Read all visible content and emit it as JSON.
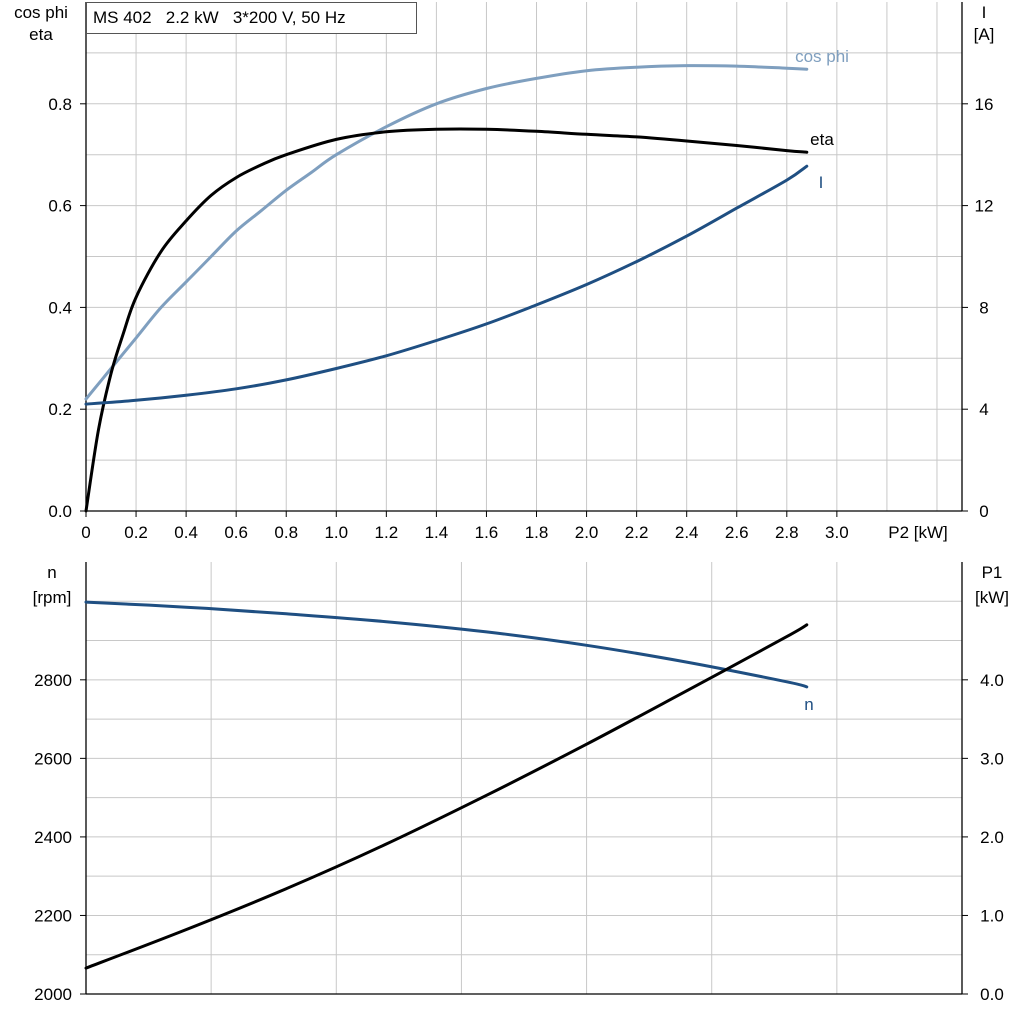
{
  "chart_data": [
    {
      "type": "line",
      "title": "MS 402   2.2 kW   3*200 V, 50 Hz",
      "xlabel": "P2 [kW]",
      "xlim": [
        0,
        3.5
      ],
      "xticks": [
        "0",
        "0.2",
        "0.4",
        "0.6",
        "0.8",
        "1.0",
        "1.2",
        "1.4",
        "1.6",
        "1.8",
        "2.0",
        "2.2",
        "2.4",
        "2.6",
        "2.8",
        "3.0"
      ],
      "ylabel_left": [
        "cos phi",
        "eta"
      ],
      "ylim_left": [
        0,
        1.0
      ],
      "yticks_left": [
        "0.0",
        "0.2",
        "0.4",
        "0.6",
        "0.8"
      ],
      "ylabel_right": [
        "I",
        "[A]"
      ],
      "ylim_right": [
        0,
        20
      ],
      "yticks_right": [
        "0",
        "4",
        "8",
        "12",
        "16"
      ],
      "grid": true,
      "series": [
        {
          "name": "cos phi",
          "axis": "left",
          "color": "#7f9fbf",
          "x": [
            0,
            0.1,
            0.2,
            0.3,
            0.4,
            0.5,
            0.6,
            0.7,
            0.8,
            0.9,
            1.0,
            1.2,
            1.4,
            1.6,
            1.8,
            2.0,
            2.2,
            2.4,
            2.6,
            2.8,
            2.88
          ],
          "y": [
            0.22,
            0.28,
            0.34,
            0.4,
            0.45,
            0.5,
            0.55,
            0.59,
            0.63,
            0.665,
            0.7,
            0.755,
            0.8,
            0.83,
            0.85,
            0.865,
            0.872,
            0.875,
            0.874,
            0.87,
            0.868
          ]
        },
        {
          "name": "eta",
          "axis": "left",
          "color": "#000000",
          "x": [
            0,
            0.05,
            0.1,
            0.15,
            0.2,
            0.3,
            0.4,
            0.5,
            0.6,
            0.7,
            0.8,
            1.0,
            1.2,
            1.4,
            1.6,
            1.8,
            2.0,
            2.2,
            2.4,
            2.6,
            2.8,
            2.88
          ],
          "y": [
            0.0,
            0.16,
            0.27,
            0.35,
            0.42,
            0.51,
            0.57,
            0.62,
            0.655,
            0.68,
            0.7,
            0.73,
            0.745,
            0.75,
            0.75,
            0.746,
            0.74,
            0.735,
            0.727,
            0.718,
            0.708,
            0.705
          ]
        },
        {
          "name": "I",
          "axis": "right",
          "color": "#1f4f82",
          "x": [
            0,
            0.2,
            0.4,
            0.6,
            0.8,
            1.0,
            1.2,
            1.4,
            1.6,
            1.8,
            2.0,
            2.2,
            2.4,
            2.6,
            2.8,
            2.88
          ],
          "y": [
            4.2,
            4.35,
            4.55,
            4.8,
            5.15,
            5.6,
            6.1,
            6.7,
            7.35,
            8.1,
            8.9,
            9.8,
            10.8,
            11.9,
            13.0,
            13.55
          ]
        }
      ]
    },
    {
      "type": "line",
      "xlim": [
        0,
        3.5
      ],
      "ylabel_left": [
        "n",
        "[rpm]"
      ],
      "ylim_left": [
        2000,
        3100
      ],
      "yticks_left": [
        "2000",
        "2200",
        "2400",
        "2600",
        "2800"
      ],
      "ylabel_right": [
        "P1",
        "[kW]"
      ],
      "ylim_right": [
        0,
        5.5
      ],
      "yticks_right": [
        "0.0",
        "1.0",
        "2.0",
        "3.0",
        "4.0"
      ],
      "grid": true,
      "series": [
        {
          "name": "n",
          "axis": "left",
          "color": "#1f4f82",
          "x": [
            0,
            0.4,
            0.8,
            1.2,
            1.6,
            2.0,
            2.4,
            2.8,
            2.88
          ],
          "y": [
            2998,
            2985,
            2968,
            2948,
            2922,
            2888,
            2845,
            2795,
            2782
          ]
        },
        {
          "axis": "right",
          "color": "#000000",
          "x": [
            0,
            0.4,
            0.8,
            1.2,
            1.6,
            2.0,
            2.4,
            2.8,
            2.88
          ],
          "y": [
            0.33,
            0.82,
            1.34,
            1.91,
            2.53,
            3.18,
            3.86,
            4.55,
            4.7
          ]
        }
      ]
    }
  ]
}
